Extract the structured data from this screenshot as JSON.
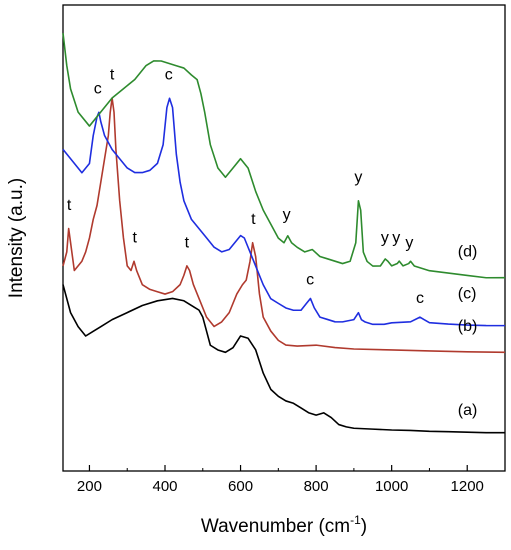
{
  "chart_data": {
    "type": "line",
    "title": "",
    "xlabel": "Wavenumber (cm",
    "xlabel_sup": "-1",
    "xlabel_close": ")",
    "ylabel": "Intensity (a.u.)",
    "xlim": [
      130,
      1300
    ],
    "ylim": [
      0,
      100
    ],
    "xticks": [
      200,
      400,
      600,
      800,
      1000,
      1200
    ],
    "yticks_shown": false,
    "grid": false,
    "legend": "none",
    "series": [
      {
        "name": "(a)",
        "color": "#000000",
        "x": [
          130,
          150,
          170,
          190,
          210,
          230,
          260,
          300,
          340,
          380,
          420,
          450,
          480,
          490,
          500,
          510,
          520,
          540,
          560,
          580,
          600,
          620,
          640,
          660,
          680,
          700,
          720,
          740,
          760,
          780,
          800,
          820,
          840,
          860,
          880,
          900,
          950,
          1000,
          1050,
          1100,
          1150,
          1200,
          1250,
          1300
        ],
        "y": [
          40,
          34,
          31,
          29,
          30,
          31,
          32.5,
          34,
          35.5,
          36.5,
          37,
          36.5,
          35,
          34.5,
          33,
          30,
          27,
          26,
          25.5,
          26.5,
          29,
          28.5,
          26,
          21,
          17.5,
          16,
          15,
          14.5,
          13.5,
          12.5,
          12,
          12.5,
          11.5,
          10,
          9.5,
          9.2,
          9,
          8.8,
          8.7,
          8.5,
          8.4,
          8.3,
          8.2,
          8.2
        ]
      },
      {
        "name": "(b)",
        "color": "#b03a2e",
        "x": [
          130,
          140,
          145,
          150,
          155,
          160,
          170,
          180,
          190,
          200,
          210,
          220,
          230,
          240,
          250,
          255,
          260,
          265,
          270,
          280,
          290,
          300,
          310,
          318,
          325,
          340,
          360,
          380,
          400,
          420,
          440,
          450,
          458,
          465,
          475,
          490,
          510,
          530,
          550,
          570,
          590,
          605,
          615,
          625,
          632,
          640,
          650,
          660,
          680,
          700,
          720,
          750,
          800,
          850,
          900,
          1000,
          1100,
          1200,
          1300
        ],
        "y": [
          44,
          47,
          52,
          49,
          46,
          43,
          44,
          45,
          47,
          50,
          54,
          57,
          62,
          67,
          72,
          77,
          80,
          77,
          69,
          58,
          50,
          44,
          43,
          45,
          43,
          40,
          39,
          38.5,
          38,
          38.5,
          40,
          42,
          44,
          43,
          40,
          37,
          33,
          31,
          32,
          34,
          38,
          40,
          41,
          45,
          49,
          46,
          38,
          33,
          30,
          28,
          27,
          26.8,
          27,
          26.5,
          26.2,
          26,
          25.8,
          25.6,
          25.5
        ]
      },
      {
        "name": "(c)",
        "color": "#1f2ee0",
        "x": [
          130,
          160,
          180,
          200,
          210,
          220,
          225,
          230,
          240,
          260,
          280,
          300,
          320,
          340,
          360,
          380,
          395,
          405,
          412,
          420,
          430,
          440,
          450,
          470,
          490,
          510,
          530,
          550,
          570,
          590,
          600,
          610,
          620,
          640,
          660,
          680,
          700,
          720,
          740,
          760,
          775,
          785,
          795,
          810,
          830,
          850,
          870,
          900,
          912,
          920,
          930,
          950,
          980,
          1000,
          1050,
          1075,
          1085,
          1100,
          1150,
          1200,
          1250,
          1300
        ],
        "y": [
          69,
          66,
          64,
          66,
          72,
          76,
          77,
          75,
          72,
          69,
          67,
          65,
          64,
          64,
          64.5,
          66,
          70,
          78,
          80,
          78,
          68,
          62,
          58,
          54,
          52,
          50,
          48,
          47,
          47.5,
          49.5,
          50.5,
          50,
          48,
          44,
          40,
          37,
          36,
          35,
          34.5,
          34.5,
          36,
          37,
          35,
          33,
          32.5,
          32,
          32,
          32.5,
          34,
          32.5,
          32,
          31.5,
          31.5,
          31.8,
          32,
          33,
          32.5,
          31.8,
          31.5,
          31.3,
          31.2,
          31.2
        ]
      },
      {
        "name": "(d)",
        "color": "#2e8b2e",
        "x": [
          130,
          140,
          150,
          170,
          200,
          230,
          260,
          290,
          320,
          350,
          370,
          390,
          410,
          430,
          450,
          470,
          485,
          495,
          505,
          520,
          540,
          560,
          580,
          600,
          620,
          640,
          660,
          680,
          700,
          715,
          725,
          735,
          750,
          770,
          790,
          810,
          830,
          850,
          870,
          890,
          905,
          912,
          918,
          925,
          935,
          950,
          970,
          983,
          990,
          1000,
          1015,
          1020,
          1030,
          1045,
          1050,
          1060,
          1100,
          1150,
          1200,
          1250,
          1300
        ],
        "y": [
          94,
          87,
          82,
          77,
          74,
          77,
          80,
          82,
          84,
          87,
          88,
          88,
          87.5,
          87,
          86.5,
          85,
          84,
          81,
          77,
          70,
          65,
          63,
          65,
          67,
          65,
          60,
          56,
          53,
          50,
          49,
          50.5,
          49,
          48,
          47,
          47.5,
          46,
          45.5,
          45,
          44.5,
          45,
          49,
          58,
          56,
          47,
          45,
          44,
          44,
          45.5,
          45,
          44,
          44.5,
          45,
          44,
          44.5,
          45,
          44,
          43,
          42.5,
          42,
          41.5,
          41.5
        ]
      }
    ],
    "curve_labels": [
      {
        "text": "(a)",
        "x": 1175,
        "y": 12
      },
      {
        "text": "(b)",
        "x": 1175,
        "y": 30
      },
      {
        "text": "(c)",
        "x": 1175,
        "y": 37
      },
      {
        "text": "(d)",
        "x": 1175,
        "y": 46
      }
    ],
    "annotations": [
      {
        "text": "t",
        "x": 146,
        "y": 56
      },
      {
        "text": "t",
        "x": 260,
        "y": 84
      },
      {
        "text": "t",
        "x": 320,
        "y": 49
      },
      {
        "text": "t",
        "x": 458,
        "y": 48
      },
      {
        "text": "t",
        "x": 634,
        "y": 53
      },
      {
        "text": "c",
        "x": 222,
        "y": 81
      },
      {
        "text": "c",
        "x": 410,
        "y": 84
      },
      {
        "text": "c",
        "x": 784,
        "y": 40
      },
      {
        "text": "c",
        "x": 1075,
        "y": 36
      },
      {
        "text": "y",
        "x": 722,
        "y": 54
      },
      {
        "text": "y",
        "x": 912,
        "y": 62
      },
      {
        "text": "y",
        "x": 982,
        "y": 49
      },
      {
        "text": "y",
        "x": 1012,
        "y": 49
      },
      {
        "text": "y",
        "x": 1047,
        "y": 48
      }
    ]
  }
}
